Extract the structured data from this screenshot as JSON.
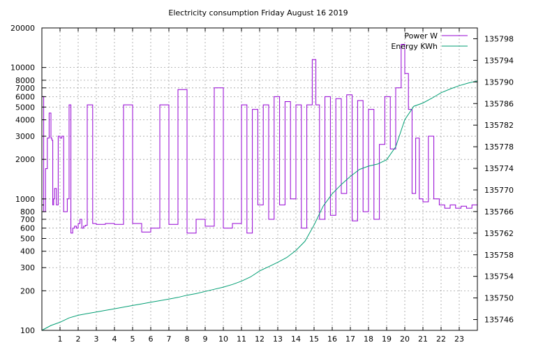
{
  "chart_data": {
    "type": "line",
    "title": "Electricity consumption Friday August 16 2019",
    "xlabel": "",
    "ylabel": "",
    "y2label": "",
    "grid": true,
    "legend_position": "top-right",
    "x_range": [
      0,
      24
    ],
    "x_ticks": [
      1,
      2,
      3,
      4,
      5,
      6,
      7,
      8,
      9,
      10,
      11,
      12,
      13,
      14,
      15,
      16,
      17,
      18,
      19,
      20,
      21,
      22,
      23
    ],
    "y_scale": "log",
    "y_range": [
      100,
      20000
    ],
    "y_ticks": [
      100,
      200,
      300,
      400,
      500,
      600,
      700,
      800,
      1000,
      2000,
      3000,
      4000,
      5000,
      6000,
      7000,
      8000,
      10000,
      20000
    ],
    "y2_range": [
      135744,
      135800
    ],
    "y2_ticks": [
      135746,
      135750,
      135754,
      135758,
      135762,
      135766,
      135770,
      135774,
      135778,
      135782,
      135786,
      135790,
      135794,
      135798
    ],
    "series": [
      {
        "name": "Power W",
        "axis": "left",
        "color": "#9400d3",
        "x": [
          0.0,
          0.1,
          0.2,
          0.3,
          0.4,
          0.5,
          0.55,
          0.6,
          0.65,
          0.7,
          0.8,
          0.9,
          1.0,
          1.1,
          1.2,
          1.3,
          1.4,
          1.5,
          1.6,
          1.7,
          1.8,
          1.9,
          2.0,
          2.1,
          2.2,
          2.3,
          2.4,
          2.5,
          2.8,
          3.0,
          3.5,
          4.0,
          4.5,
          5.0,
          5.5,
          6.0,
          6.5,
          7.0,
          7.5,
          8.0,
          8.5,
          9.0,
          9.5,
          10.0,
          10.5,
          11.0,
          11.3,
          11.6,
          11.9,
          12.2,
          12.5,
          12.8,
          13.1,
          13.4,
          13.7,
          14.0,
          14.3,
          14.6,
          14.9,
          15.1,
          15.3,
          15.6,
          15.9,
          16.2,
          16.5,
          16.8,
          17.1,
          17.4,
          17.7,
          18.0,
          18.3,
          18.6,
          18.9,
          19.2,
          19.5,
          19.8,
          20.0,
          20.2,
          20.4,
          20.6,
          20.8,
          21.0,
          21.3,
          21.6,
          21.9,
          22.2,
          22.5,
          22.8,
          23.1,
          23.4,
          23.7,
          24.0
        ],
        "values": [
          6000,
          800,
          1700,
          2900,
          4500,
          2900,
          2800,
          900,
          1000,
          1200,
          900,
          3000,
          2900,
          3000,
          800,
          800,
          1000,
          5200,
          550,
          600,
          620,
          600,
          650,
          700,
          600,
          620,
          630,
          5200,
          650,
          640,
          650,
          640,
          5200,
          650,
          560,
          600,
          5200,
          640,
          6800,
          550,
          700,
          620,
          7000,
          600,
          650,
          5200,
          550,
          4800,
          900,
          5200,
          700,
          6000,
          900,
          5500,
          1000,
          5200,
          600,
          5200,
          11500,
          5200,
          700,
          6000,
          750,
          5800,
          1100,
          6200,
          680,
          5600,
          800,
          4800,
          700,
          2600,
          6000,
          2400,
          7000,
          15000,
          9000,
          4800,
          1100,
          2900,
          1000,
          950,
          3000,
          1000,
          900,
          850,
          900,
          850,
          880,
          850,
          900,
          880
        ]
      },
      {
        "name": "Energy KWh",
        "axis": "right",
        "color": "#009e73",
        "x": [
          0.0,
          0.5,
          1.0,
          1.5,
          2.0,
          2.5,
          3.0,
          3.5,
          4.0,
          4.5,
          5.0,
          5.5,
          6.0,
          6.5,
          7.0,
          7.5,
          8.0,
          8.5,
          9.0,
          9.5,
          10.0,
          10.5,
          11.0,
          11.5,
          12.0,
          12.5,
          13.0,
          13.5,
          14.0,
          14.5,
          15.0,
          15.5,
          16.0,
          16.5,
          17.0,
          17.5,
          18.0,
          18.5,
          19.0,
          19.5,
          20.0,
          20.5,
          21.0,
          21.5,
          22.0,
          22.5,
          23.0,
          23.5,
          24.0
        ],
        "values": [
          135744.0,
          135744.9,
          135745.5,
          135746.3,
          135746.8,
          135747.1,
          135747.4,
          135747.7,
          135748.0,
          135748.3,
          135748.6,
          135748.9,
          135749.2,
          135749.5,
          135749.8,
          135750.1,
          135750.5,
          135750.8,
          135751.2,
          135751.6,
          135752.0,
          135752.5,
          135753.1,
          135753.9,
          135755.0,
          135755.8,
          135756.6,
          135757.5,
          135758.8,
          135760.5,
          135763.5,
          135767.0,
          135769.3,
          135771.0,
          135772.5,
          135773.8,
          135774.4,
          135774.8,
          135775.6,
          135778.0,
          135783.0,
          135785.5,
          135786.1,
          135787.0,
          135788.0,
          135788.7,
          135789.3,
          135789.8,
          135790.2
        ]
      }
    ]
  }
}
